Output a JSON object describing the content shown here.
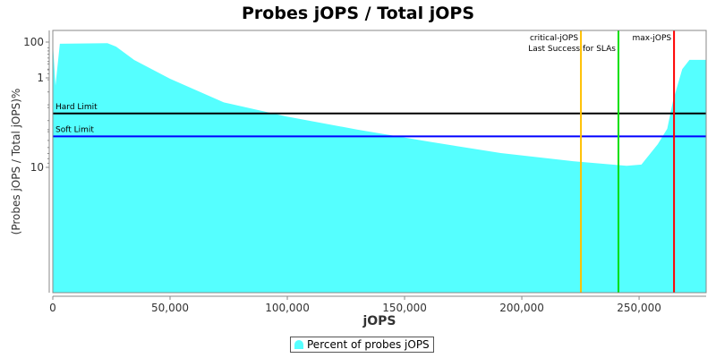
{
  "chart_data": {
    "type": "area",
    "title": "Probes jOPS / Total jOPS",
    "xlabel": "jOPS",
    "ylabel": "(Probes jOPS / Total jOPS)%",
    "yscale": "log",
    "xlim": [
      0,
      278600
    ],
    "ylim": [
      0.4,
      124
    ],
    "x_ticks": [
      {
        "v": 0,
        "label": "0"
      },
      {
        "v": 50000,
        "label": "50,000"
      },
      {
        "v": 100000,
        "label": "100,000"
      },
      {
        "v": 150000,
        "label": "150,000"
      },
      {
        "v": 200000,
        "label": "200,000"
      },
      {
        "v": 250000,
        "label": "250,000"
      }
    ],
    "y_ticks": [
      {
        "v": 1,
        "label": "1"
      },
      {
        "v": 10,
        "label": "10"
      },
      {
        "v": 100,
        "label": "100"
      }
    ],
    "grid": false,
    "legend_position": "bottom",
    "series": [
      {
        "name": "Percent of probes jOPS",
        "color": "#55ffff",
        "x": [
          0,
          1150,
          3000,
          23300,
          27000,
          34700,
          50000,
          72900,
          99600,
          130000,
          160700,
          191000,
          221800,
          244700,
          251000,
          258000,
          262000,
          264500,
          268400,
          271500,
          278600
        ],
        "y": [
          0.4,
          45,
          97,
          98,
          92,
          72,
          51,
          33,
          25.5,
          20,
          16,
          13,
          11.2,
          10.3,
          9.3,
          5.5,
          3.7,
          1.8,
          0.8,
          0.63,
          0.63
        ]
      }
    ],
    "horizontal_lines": [
      {
        "label": "Soft Limit",
        "value": 4.5,
        "color": "#0000ff"
      },
      {
        "label": "Hard Limit",
        "value": 2.5,
        "color": "#000000"
      }
    ],
    "vertical_lines": [
      {
        "label": "critical-jOPS",
        "value": 225200,
        "color": "#ffc000"
      },
      {
        "label": "Last Success for SLAs",
        "value": 241200,
        "color": "#00e000"
      },
      {
        "label": "max-jOPS",
        "value": 264900,
        "color": "#ff0000"
      }
    ]
  }
}
